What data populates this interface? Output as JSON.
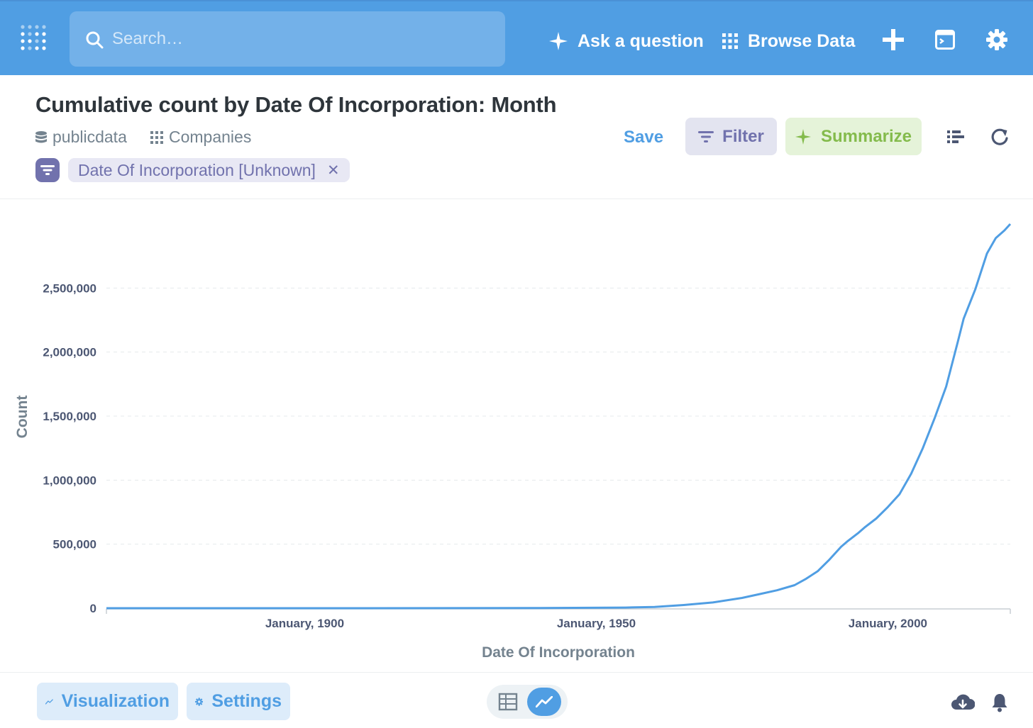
{
  "nav": {
    "search_placeholder": "Search…",
    "ask_label": "Ask a question",
    "browse_label": "Browse Data",
    "accent": "#509ee3"
  },
  "header": {
    "title": "Cumulative count by Date Of Incorporation: Month",
    "database": "publicdata",
    "table": "Companies",
    "filter_pill": "Date Of Incorporation [Unknown]",
    "save_label": "Save",
    "filter_label": "Filter",
    "summarize_label": "Summarize"
  },
  "footer": {
    "visualization_label": "Visualization",
    "settings_label": "Settings"
  },
  "icons": [
    "metabase-logo-icon",
    "search-icon",
    "sparkle-icon",
    "grid-icon",
    "plus-icon",
    "terminal-icon",
    "gear-icon",
    "database-icon",
    "table-icon",
    "filter-icon",
    "bullet-list-icon",
    "refresh-icon",
    "line-chart-icon",
    "table-view-icon",
    "download-icon",
    "bell-icon"
  ],
  "chart_data": {
    "type": "line",
    "ylabel": "Count",
    "xlabel": "Date Of Incorporation",
    "ylim": [
      0,
      3000000
    ],
    "yticks": [
      0,
      500000,
      1000000,
      1500000,
      2000000,
      2500000
    ],
    "ytick_labels": [
      "0",
      "500,000",
      "1,000,000",
      "1,500,000",
      "2,000,000",
      "2,500,000"
    ],
    "xlim": [
      1866,
      2021
    ],
    "xticks": [
      1900,
      1950,
      2000
    ],
    "xtick_labels": [
      "January, 1900",
      "January, 1950",
      "January, 2000"
    ],
    "grid": true,
    "color": "#509ee3",
    "series": [
      {
        "x": [
          1866,
          1900,
          1940,
          1955,
          1960,
          1965,
          1970,
          1975,
          1978,
          1981,
          1984,
          1986,
          1988,
          1990,
          1992,
          1993,
          1995,
          1996,
          1998,
          2000,
          2002,
          2004,
          2006,
          2008,
          2010,
          2012,
          2013,
          2015,
          2017,
          2018.5,
          2020,
          2021
        ],
        "y": [
          0,
          0,
          1000,
          5000,
          10000,
          25000,
          45000,
          80000,
          110000,
          140000,
          180000,
          230000,
          290000,
          380000,
          480000,
          520000,
          590000,
          630000,
          700000,
          790000,
          890000,
          1050000,
          1250000,
          1480000,
          1730000,
          2080000,
          2260000,
          2490000,
          2770000,
          2890000,
          2950000,
          3000000
        ]
      }
    ]
  }
}
